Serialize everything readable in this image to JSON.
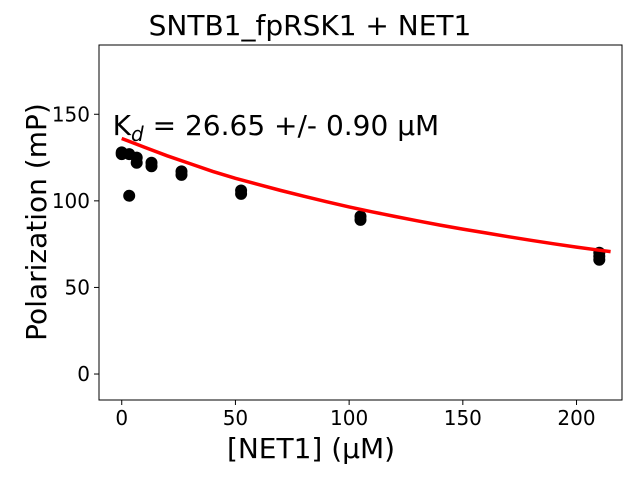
{
  "chart_data": {
    "type": "scatter",
    "title": "SNTB1_fpRSK1 + NET1",
    "xlabel": "[NET1] (μM)",
    "ylabel": "Polarization (mP)",
    "xlim": [
      -10,
      220
    ],
    "ylim": [
      -15,
      190
    ],
    "xticks": [
      0,
      50,
      100,
      150,
      200
    ],
    "yticks": [
      0,
      50,
      100,
      150
    ],
    "grid": false,
    "annotation": {
      "prefix": "K",
      "subscript": "d",
      "text": " = 26.65 +/- 0.90 ",
      "unit": "μM",
      "x": -4,
      "y": 138
    },
    "series": [
      {
        "color": "#000000",
        "marker": "circle",
        "points": [
          {
            "x": 0,
            "y": 128
          },
          {
            "x": 0,
            "y": 127
          },
          {
            "x": 3.3,
            "y": 127
          },
          {
            "x": 3.3,
            "y": 103
          },
          {
            "x": 6.6,
            "y": 125
          },
          {
            "x": 6.6,
            "y": 122
          },
          {
            "x": 13.1,
            "y": 122
          },
          {
            "x": 13.1,
            "y": 120
          },
          {
            "x": 26.3,
            "y": 117
          },
          {
            "x": 26.3,
            "y": 115
          },
          {
            "x": 52.5,
            "y": 106
          },
          {
            "x": 52.5,
            "y": 104
          },
          {
            "x": 105,
            "y": 91
          },
          {
            "x": 105,
            "y": 89
          },
          {
            "x": 210,
            "y": 70
          },
          {
            "x": 210,
            "y": 68
          },
          {
            "x": 210,
            "y": 66
          }
        ]
      },
      {
        "color": "#ff0000",
        "marker": "line",
        "x": [
          0,
          10,
          20,
          30,
          40,
          50,
          60,
          70,
          80,
          90,
          100,
          110,
          120,
          130,
          140,
          150,
          160,
          170,
          180,
          190,
          200,
          210,
          215
        ],
        "y": [
          136,
          131,
          126,
          121.5,
          117,
          113,
          109.5,
          106,
          102.7,
          99.5,
          96.5,
          93.7,
          91,
          88.5,
          86,
          83.7,
          81.5,
          79.3,
          77.2,
          75.2,
          73.3,
          71.5,
          70.7
        ]
      }
    ]
  }
}
